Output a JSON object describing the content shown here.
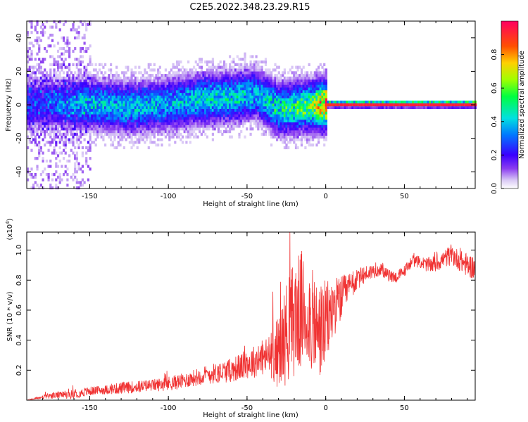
{
  "title": "C2E5.2022.348.23.29.R15",
  "chart_data": [
    {
      "type": "heatmap",
      "xlabel": "Height of straight line (km)",
      "ylabel": "Frequency (Hz)",
      "xlim": [
        -190,
        95
      ],
      "ylim": [
        -50,
        50
      ],
      "x_ticks": [
        -150,
        -100,
        -50,
        0,
        50
      ],
      "x_tick_labels": [
        "-150",
        "-100",
        "-50",
        "0",
        "50"
      ],
      "y_ticks": [
        -40,
        -20,
        0,
        20,
        40
      ],
      "y_tick_labels": [
        "-40",
        "-20",
        "0",
        "20",
        "40"
      ],
      "colorbar": {
        "label": "Normalized spectral amplitude",
        "range": [
          0,
          1
        ],
        "ticks": [
          0.0,
          0.2,
          0.4,
          0.6,
          0.8
        ],
        "tick_labels": [
          "0.0",
          "0.2",
          "0.4",
          "0.6",
          "0.8"
        ]
      },
      "ridge": {
        "description_points_x": [
          -180,
          -150,
          -120,
          -100,
          -80,
          -60,
          -45,
          -30,
          -20,
          -10,
          0,
          10,
          30,
          50,
          70,
          95
        ],
        "center_frequency": [
          0,
          0,
          -2,
          0,
          3,
          4,
          6,
          -3,
          -2,
          -1,
          0,
          0,
          0,
          0,
          0,
          0
        ],
        "peak_amplitude": [
          0.25,
          0.4,
          0.42,
          0.38,
          0.45,
          0.45,
          0.4,
          0.5,
          0.55,
          0.6,
          0.9,
          0.95,
          0.95,
          0.95,
          0.95,
          0.95
        ]
      }
    },
    {
      "type": "line",
      "xlabel": "Height of straight line (km)",
      "ylabel": "SNR (10 * v/v)",
      "y_scale_label": "(x10",
      "y_scale_exp": "4",
      "y_scale_close": ")",
      "xlim": [
        -190,
        95
      ],
      "ylim": [
        0,
        1.12
      ],
      "x_ticks": [
        -150,
        -100,
        -50,
        0,
        50
      ],
      "x_tick_labels": [
        "-150",
        "-100",
        "-50",
        "0",
        "50"
      ],
      "y_ticks": [
        0.2,
        0.4,
        0.6,
        0.8,
        1.0
      ],
      "y_tick_labels": [
        "0.2",
        "0.4",
        "0.6",
        "0.8",
        "1.0"
      ],
      "color": "#f03232",
      "series": [
        {
          "name": "SNR",
          "x": [
            -190,
            -175,
            -160,
            -150,
            -140,
            -130,
            -120,
            -110,
            -100,
            -90,
            -80,
            -70,
            -60,
            -50,
            -40,
            -35,
            -30,
            -25,
            -20,
            -15,
            -10,
            -5,
            0,
            5,
            10,
            15,
            20,
            25,
            30,
            35,
            40,
            45,
            50,
            55,
            60,
            65,
            70,
            75,
            80,
            85,
            90,
            95
          ],
          "envelope": [
            0.0,
            0.03,
            0.04,
            0.06,
            0.07,
            0.08,
            0.09,
            0.1,
            0.11,
            0.13,
            0.16,
            0.18,
            0.2,
            0.24,
            0.28,
            0.3,
            0.32,
            0.45,
            0.55,
            0.6,
            0.55,
            0.45,
            0.5,
            0.62,
            0.68,
            0.75,
            0.8,
            0.84,
            0.86,
            0.87,
            0.83,
            0.82,
            0.86,
            0.93,
            0.92,
            0.9,
            0.91,
            0.94,
            0.97,
            0.93,
            0.9,
            0.88
          ],
          "noise_amp": [
            0.0,
            0.02,
            0.03,
            0.03,
            0.03,
            0.04,
            0.04,
            0.04,
            0.05,
            0.05,
            0.06,
            0.07,
            0.08,
            0.1,
            0.12,
            0.15,
            0.25,
            0.35,
            0.4,
            0.4,
            0.35,
            0.35,
            0.3,
            0.2,
            0.15,
            0.1,
            0.07,
            0.06,
            0.05,
            0.04,
            0.04,
            0.04,
            0.04,
            0.04,
            0.04,
            0.05,
            0.06,
            0.06,
            0.07,
            0.07,
            0.08,
            0.08
          ]
        }
      ]
    }
  ]
}
